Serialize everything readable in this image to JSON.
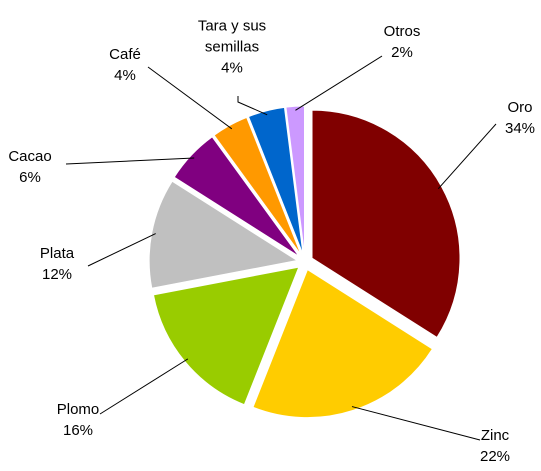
{
  "chart_data": {
    "type": "pie",
    "categories": [
      "Oro",
      "Zinc",
      "Plomo",
      "Plata",
      "Cacao",
      "Café",
      "Tara y sus semillas",
      "Otros"
    ],
    "values": [
      34,
      22,
      16,
      12,
      6,
      4,
      4,
      2
    ],
    "value_labels": [
      "34%",
      "22%",
      "16%",
      "12%",
      "6%",
      "4%",
      "4%",
      "2%"
    ],
    "colors": [
      "#800000",
      "#ffcc00",
      "#99cc00",
      "#c0c0c0",
      "#800080",
      "#ff9900",
      "#0066cc",
      "#cc99ff"
    ]
  }
}
